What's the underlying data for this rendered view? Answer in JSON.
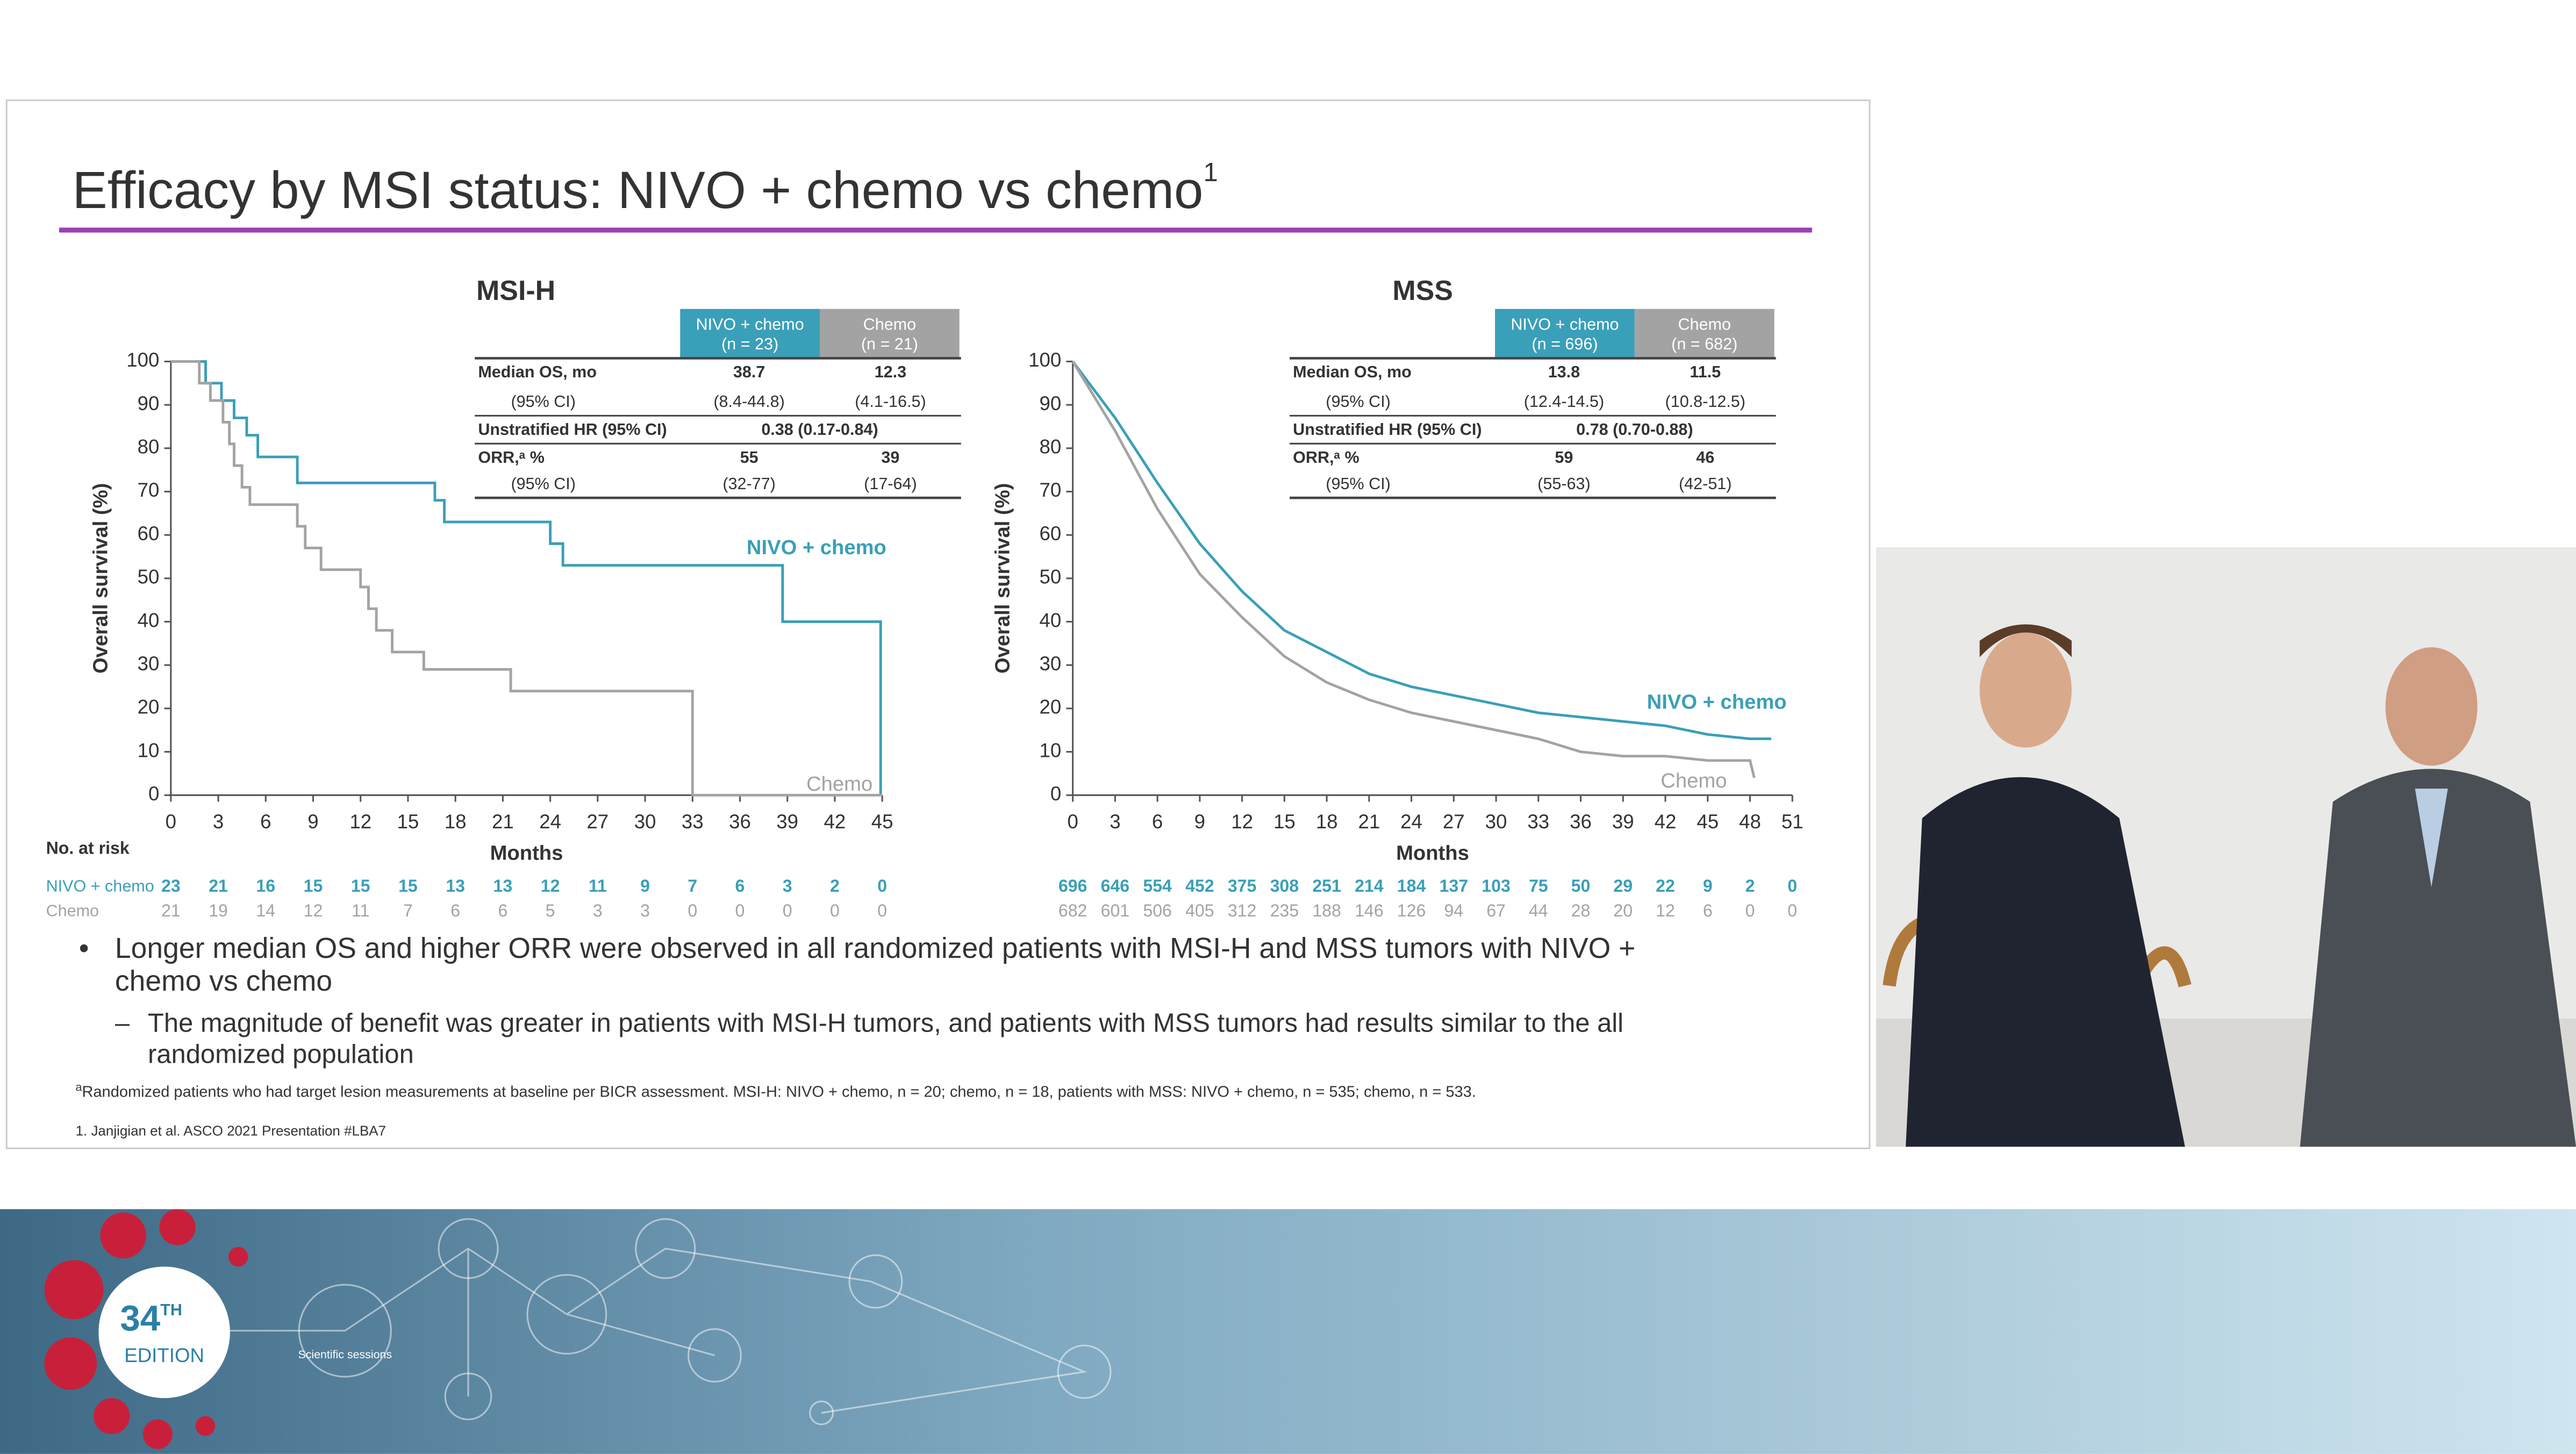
{
  "slide": {
    "title": "Efficacy by MSI status: NIVO + chemo vs chemo",
    "title_sup": "1",
    "at_risk_label": "No. at risk",
    "bullet": "Longer median OS and higher ORR were observed in all randomized patients with MSI-H and MSS tumors with NIVO + chemo vs chemo",
    "sub_bullet": "The magnitude of benefit was greater in patients with MSI-H tumors, and patients with MSS tumors had results similar to the all randomized population",
    "footnote_mark": "a",
    "footnote": "Randomized patients who had target lesion measurements at baseline per BICR assessment. MSI-H: NIVO + chemo, n = 20; chemo, n = 18, patients with MSS: NIVO + chemo, n = 535; chemo, n = 533.",
    "reference": "1. Janjigian et al. ASCO 2021 Presentation #LBA7"
  },
  "banner": {
    "edition_number": "34",
    "edition_suffix": "TH",
    "edition_word": "EDITION",
    "icon_label": "Scientific sessions"
  },
  "chart_data": [
    {
      "type": "step",
      "title": "MSI-H",
      "xlabel": "Months",
      "ylabel": "Overall survival (%)",
      "xlim": [
        0,
        45
      ],
      "xticks": [
        0,
        3,
        6,
        9,
        12,
        15,
        18,
        21,
        24,
        27,
        30,
        33,
        36,
        39,
        42,
        45
      ],
      "ylim": [
        0,
        100
      ],
      "yticks": [
        0,
        10,
        20,
        30,
        40,
        50,
        60,
        70,
        80,
        90,
        100
      ],
      "series": [
        {
          "name": "NIVO + chemo",
          "color": "#3a9fb8",
          "x": [
            0,
            2.2,
            3.2,
            4,
            4.8,
            5.5,
            8,
            16.7,
            17.3,
            24,
            24.8,
            38.7,
            44.9
          ],
          "values": [
            100,
            95,
            91,
            87,
            83,
            78,
            72,
            68,
            63,
            58,
            53,
            40,
            0
          ]
        },
        {
          "name": "Chemo",
          "color": "#a3a3a3",
          "x": [
            0,
            1.8,
            2.5,
            3.3,
            3.7,
            4,
            4.5,
            5,
            8,
            8.5,
            9.5,
            12,
            12.5,
            13,
            14,
            16,
            21.5,
            33,
            45
          ],
          "values": [
            100,
            95,
            91,
            86,
            81,
            76,
            71,
            67,
            62,
            57,
            52,
            48,
            43,
            38,
            33,
            29,
            24,
            0,
            0
          ]
        }
      ],
      "table": {
        "columns": [
          {
            "name": "NIVO + chemo",
            "n": "(n = 23)"
          },
          {
            "name": "Chemo",
            "n": "(n = 21)"
          }
        ],
        "rows": [
          [
            "Median OS, mo",
            "38.7",
            "12.3"
          ],
          [
            "(95% CI)",
            "(8.4-44.8)",
            "(4.1-16.5)"
          ],
          [
            "Unstratified HR (95% CI)",
            "0.38 (0.17-0.84)"
          ],
          [
            "ORR,ᵃ %",
            "55",
            "39"
          ],
          [
            "(95% CI)",
            "(32-77)",
            "(17-64)"
          ]
        ]
      },
      "at_risk": [
        {
          "name": "NIVO + chemo",
          "values": [
            23,
            21,
            16,
            15,
            15,
            15,
            13,
            13,
            12,
            11,
            9,
            7,
            6,
            3,
            2,
            0
          ]
        },
        {
          "name": "Chemo",
          "values": [
            21,
            19,
            14,
            12,
            11,
            7,
            6,
            6,
            5,
            3,
            3,
            0,
            0,
            0,
            0,
            0
          ]
        }
      ]
    },
    {
      "type": "line",
      "title": "MSS",
      "xlabel": "Months",
      "ylabel": "Overall survival (%)",
      "xlim": [
        0,
        51
      ],
      "xticks": [
        0,
        3,
        6,
        9,
        12,
        15,
        18,
        21,
        24,
        27,
        30,
        33,
        36,
        39,
        42,
        45,
        48,
        51
      ],
      "ylim": [
        0,
        100
      ],
      "yticks": [
        0,
        10,
        20,
        30,
        40,
        50,
        60,
        70,
        80,
        90,
        100
      ],
      "series": [
        {
          "name": "NIVO + chemo",
          "color": "#3a9fb8",
          "x": [
            0,
            3,
            6,
            9,
            12,
            15,
            18,
            21,
            24,
            27,
            30,
            33,
            36,
            39,
            42,
            45,
            48,
            49.5
          ],
          "values": [
            100,
            87,
            72,
            58,
            47,
            38,
            33,
            28,
            25,
            23,
            21,
            19,
            18,
            17,
            16,
            14,
            13,
            13
          ]
        },
        {
          "name": "Chemo",
          "color": "#a3a3a3",
          "x": [
            0,
            3,
            6,
            9,
            12,
            15,
            18,
            21,
            24,
            27,
            30,
            33,
            36,
            39,
            42,
            45,
            48,
            48.3
          ],
          "values": [
            100,
            84,
            66,
            51,
            41,
            32,
            26,
            22,
            19,
            17,
            15,
            13,
            10,
            9,
            9,
            8,
            8,
            4
          ]
        }
      ],
      "table": {
        "columns": [
          {
            "name": "NIVO + chemo",
            "n": "(n = 696)"
          },
          {
            "name": "Chemo",
            "n": "(n = 682)"
          }
        ],
        "rows": [
          [
            "Median OS, mo",
            "13.8",
            "11.5"
          ],
          [
            "(95% CI)",
            "(12.4-14.5)",
            "(10.8-12.5)"
          ],
          [
            "Unstratified HR (95% CI)",
            "0.78 (0.70-0.88)"
          ],
          [
            "ORR,ᵃ %",
            "59",
            "46"
          ],
          [
            "(95% CI)",
            "(55-63)",
            "(42-51)"
          ]
        ]
      },
      "at_risk": [
        {
          "values": [
            696,
            646,
            554,
            452,
            375,
            308,
            251,
            214,
            184,
            137,
            103,
            75,
            50,
            29,
            22,
            9,
            2,
            0
          ]
        },
        {
          "values": [
            682,
            601,
            506,
            405,
            312,
            235,
            188,
            146,
            126,
            94,
            67,
            44,
            28,
            20,
            12,
            6,
            0,
            0
          ]
        }
      ]
    }
  ]
}
